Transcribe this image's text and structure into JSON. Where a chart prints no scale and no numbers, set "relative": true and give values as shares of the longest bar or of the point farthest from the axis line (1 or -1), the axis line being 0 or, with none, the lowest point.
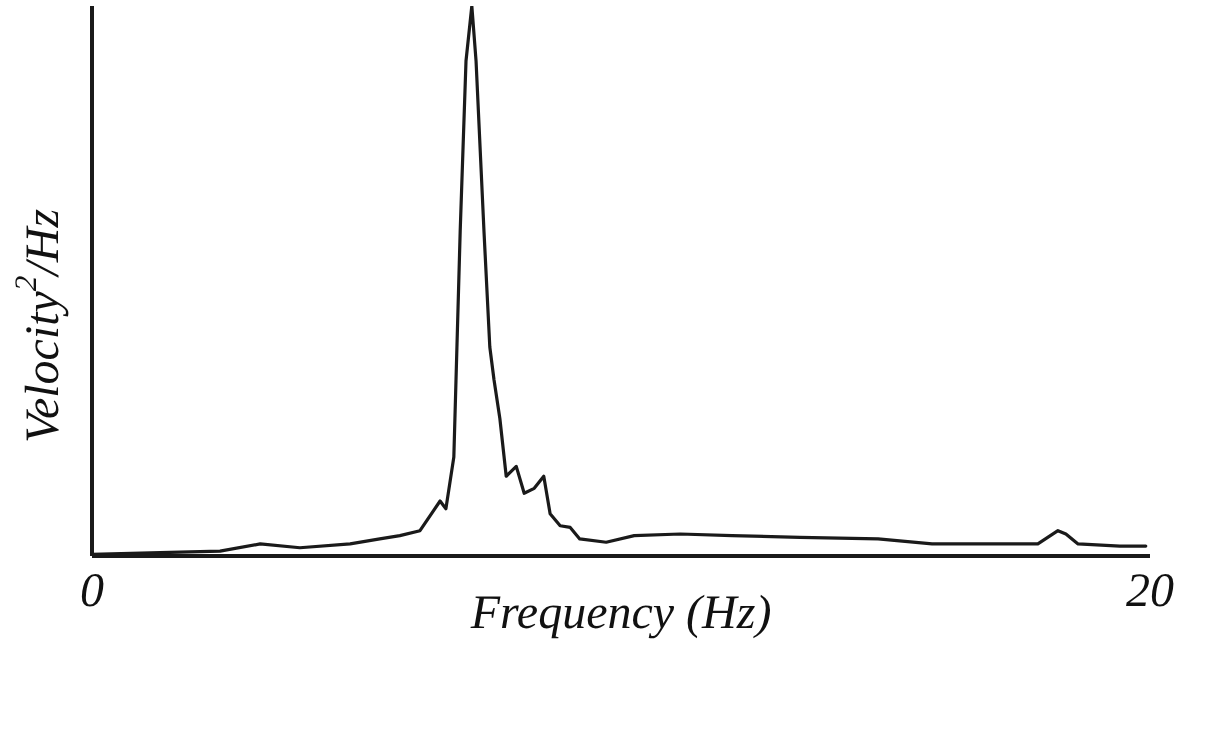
{
  "chart_data": {
    "type": "line",
    "xlabel": "Frequency (Hz)",
    "ylabel": "Velocity$^{2}$/Hz",
    "relative": true,
    "xlim": [
      0,
      20
    ],
    "xticks": [
      0,
      20
    ],
    "grid": false,
    "legend": false,
    "marker": "none",
    "line_style": "solid",
    "series": [
      {
        "color": "#1a1a1a",
        "x": [
          0,
          1.29,
          2.42,
          3.18,
          3.93,
          4.88,
          5.44,
          5.82,
          6.2,
          6.58,
          6.69,
          6.84,
          6.96,
          7.07,
          7.18,
          7.26,
          7.41,
          7.52,
          7.6,
          7.71,
          7.83,
          8.02,
          8.17,
          8.36,
          8.54,
          8.66,
          8.85,
          9.04,
          9.22,
          9.72,
          10.25,
          11.12,
          12.1,
          13.38,
          14.86,
          15.88,
          17.16,
          17.88,
          18.26,
          18.41,
          18.64,
          19.43,
          19.92
        ],
        "values": [
          0.003,
          0.006,
          0.009,
          0.022,
          0.015,
          0.022,
          0.031,
          0.037,
          0.046,
          0.1,
          0.086,
          0.18,
          0.59,
          0.9,
          1,
          0.9,
          0.59,
          0.38,
          0.32,
          0.25,
          0.145,
          0.163,
          0.114,
          0.123,
          0.145,
          0.077,
          0.055,
          0.052,
          0.031,
          0.025,
          0.037,
          0.04,
          0.037,
          0.034,
          0.031,
          0.022,
          0.022,
          0.022,
          0.046,
          0.04,
          0.022,
          0.018,
          0.018
        ]
      }
    ]
  }
}
